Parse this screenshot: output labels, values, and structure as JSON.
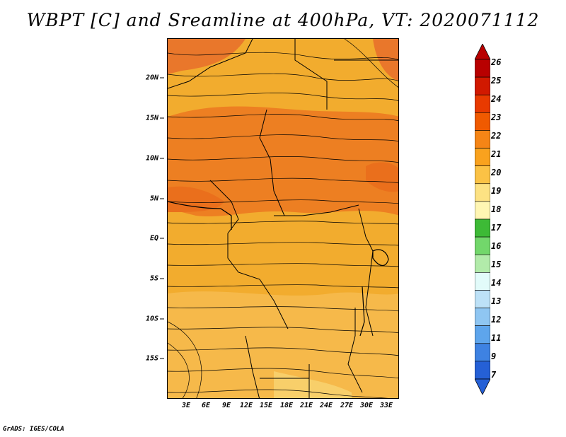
{
  "title": "WBPT [C] and Sreamline at 400hPa, VT: 2020071112",
  "footer": "GrADS: IGES/COLA",
  "map": {
    "lat_labels": [
      "20N",
      "15N",
      "10N",
      "5N",
      "EQ",
      "5S",
      "10S",
      "15S"
    ],
    "lon_labels": [
      "3E",
      "6E",
      "9E",
      "12E",
      "15E",
      "18E",
      "21E",
      "24E",
      "27E",
      "30E",
      "33E"
    ],
    "field": "wet-bulb potential temperature shaded with streamlines"
  },
  "colorbar": {
    "labels": [
      "26",
      "25",
      "24",
      "23",
      "22",
      "21",
      "20",
      "19",
      "18",
      "17",
      "16",
      "15",
      "14",
      "13",
      "12",
      "11",
      "9",
      "7"
    ],
    "colors": [
      "#b80000",
      "#d11900",
      "#e83a00",
      "#f05a00",
      "#f58516",
      "#f9a21e",
      "#fbc245",
      "#fde283",
      "#fff6b3",
      "#3dba36",
      "#72d76b",
      "#b2ebaa",
      "#e2fbfa",
      "#bde1f7",
      "#8fc6f2",
      "#5ea5ec",
      "#3e82e2",
      "#2560d6"
    ]
  },
  "chart_data": {
    "type": "heatmap",
    "title": "WBPT [C] and Sreamline at 400hPa, VT: 2020071112",
    "x_ticks": [
      "3E",
      "6E",
      "9E",
      "12E",
      "15E",
      "18E",
      "21E",
      "24E",
      "27E",
      "30E",
      "33E"
    ],
    "y_ticks": [
      "20N",
      "15N",
      "10N",
      "5N",
      "EQ",
      "5S",
      "10S",
      "15S"
    ],
    "color_levels": [
      7,
      9,
      11,
      12,
      13,
      14,
      15,
      16,
      17,
      18,
      19,
      20,
      21,
      22,
      23,
      24,
      25,
      26
    ]
  }
}
